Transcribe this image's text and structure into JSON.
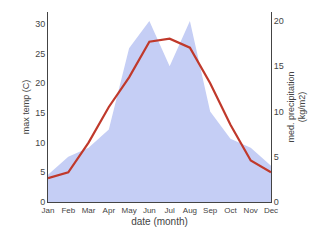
{
  "chart_data": {
    "type": "line",
    "categories": [
      "Jan",
      "Feb",
      "Mar",
      "Apr",
      "May",
      "Jun",
      "Jul",
      "Aug",
      "Sep",
      "Oct",
      "Nov",
      "Dec"
    ],
    "series": [
      {
        "type": "area",
        "axis": "y2",
        "color": "#c5cef5",
        "values": [
          3,
          5,
          6,
          8,
          17,
          20,
          15,
          20,
          10,
          7,
          6,
          4
        ]
      },
      {
        "type": "line",
        "color": "#c0392b",
        "values": [
          4,
          5,
          10,
          16,
          21,
          27,
          27.5,
          26,
          20,
          13,
          7,
          5
        ]
      }
    ],
    "xlabel": "date (month)",
    "ylabel": "max temp (C)",
    "y2label": "med. precipitation\n(kg/m2)",
    "ylim": [
      0,
      32
    ],
    "yticks": [
      0,
      5,
      10,
      15,
      20,
      25,
      30
    ],
    "y2lim": [
      0,
      21
    ],
    "y2ticks": [
      0,
      5,
      10,
      15,
      20
    ],
    "grid": false
  }
}
